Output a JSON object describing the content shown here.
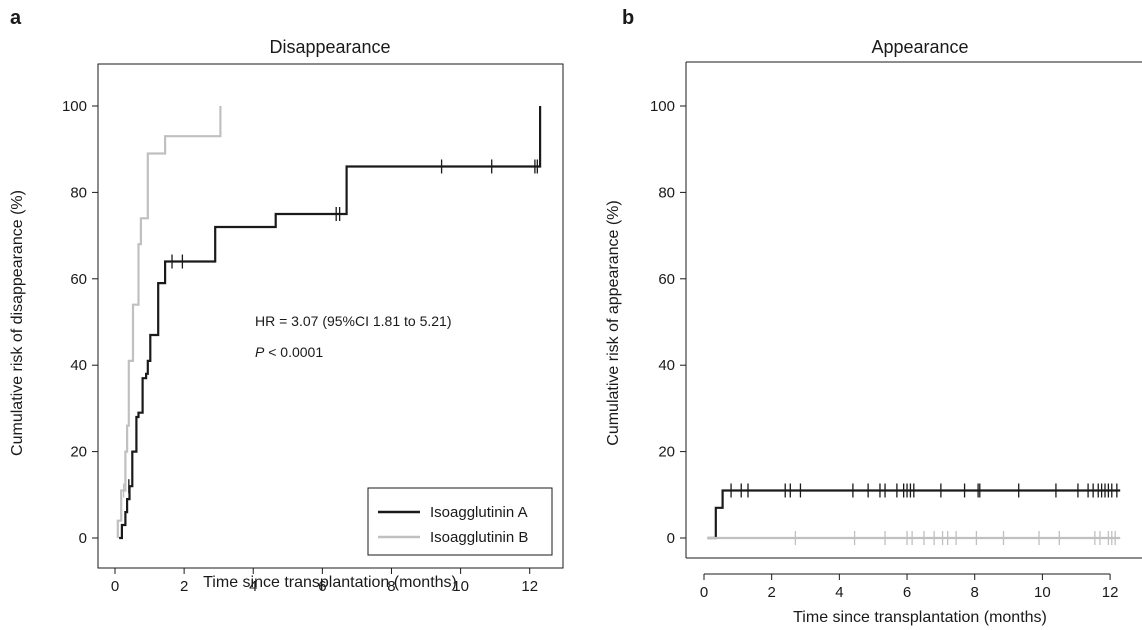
{
  "colors": {
    "series_a": "#1a1a1a",
    "series_b": "#c0c0c0",
    "axis": "#1a1a1a",
    "legend_border": "#1a1a1a"
  },
  "chart_data": [
    {
      "panel_letter": "a",
      "type": "line",
      "title": "Disappearance",
      "xlabel": "Time since transplantation (months)",
      "ylabel": "Cumulative risk of disappearance (%)",
      "xlim": [
        0,
        12.5
      ],
      "ylim": [
        0,
        100
      ],
      "xticks": [
        0,
        2,
        4,
        6,
        8,
        10,
        12
      ],
      "yticks": [
        0,
        20,
        40,
        60,
        80,
        100
      ],
      "grid": false,
      "legend": {
        "placement": "bottom-right",
        "entries": [
          "Isoagglutinin A",
          "Isoagglutinin B"
        ]
      },
      "annotations": {
        "hr": "HR = 3.07 (95%CI 1.81 to 5.21)",
        "p_italic": "P",
        "p_rest": " < 0.0001"
      },
      "series": [
        {
          "name": "Isoagglutinin A",
          "step": [
            [
              0.12,
              0
            ],
            [
              0.2,
              0
            ],
            [
              0.2,
              3
            ],
            [
              0.3,
              3
            ],
            [
              0.3,
              6
            ],
            [
              0.35,
              6
            ],
            [
              0.35,
              9
            ],
            [
              0.42,
              9
            ],
            [
              0.42,
              12
            ],
            [
              0.5,
              12
            ],
            [
              0.5,
              20
            ],
            [
              0.62,
              20
            ],
            [
              0.62,
              28
            ],
            [
              0.68,
              28
            ],
            [
              0.68,
              29
            ],
            [
              0.8,
              29
            ],
            [
              0.8,
              37
            ],
            [
              0.9,
              37
            ],
            [
              0.9,
              38
            ],
            [
              0.95,
              38
            ],
            [
              0.95,
              41
            ],
            [
              1.02,
              41
            ],
            [
              1.02,
              47
            ],
            [
              1.25,
              47
            ],
            [
              1.25,
              59
            ],
            [
              1.45,
              59
            ],
            [
              1.45,
              64
            ],
            [
              2.9,
              64
            ],
            [
              2.9,
              72
            ],
            [
              4.65,
              72
            ],
            [
              4.65,
              75
            ],
            [
              6.7,
              75
            ],
            [
              6.7,
              86
            ],
            [
              12.3,
              86
            ],
            [
              12.3,
              100
            ]
          ],
          "censored": [
            [
              0.4,
              12
            ],
            [
              1.65,
              64
            ],
            [
              1.95,
              64
            ],
            [
              6.4,
              75
            ],
            [
              6.5,
              75
            ],
            [
              9.45,
              86
            ],
            [
              10.9,
              86
            ],
            [
              12.15,
              86
            ],
            [
              12.22,
              86
            ]
          ]
        },
        {
          "name": "Isoagglutinin B",
          "step": [
            [
              0.08,
              0
            ],
            [
              0.08,
              4
            ],
            [
              0.18,
              4
            ],
            [
              0.18,
              11
            ],
            [
              0.3,
              11
            ],
            [
              0.3,
              20
            ],
            [
              0.35,
              20
            ],
            [
              0.35,
              26
            ],
            [
              0.4,
              26
            ],
            [
              0.4,
              41
            ],
            [
              0.52,
              41
            ],
            [
              0.52,
              54
            ],
            [
              0.68,
              54
            ],
            [
              0.68,
              68
            ],
            [
              0.75,
              68
            ],
            [
              0.75,
              74
            ],
            [
              0.95,
              74
            ],
            [
              0.95,
              89
            ],
            [
              1.45,
              89
            ],
            [
              1.45,
              93
            ],
            [
              3.05,
              93
            ],
            [
              3.05,
              100
            ]
          ],
          "censored": [
            [
              0.25,
              11
            ]
          ]
        }
      ]
    },
    {
      "panel_letter": "b",
      "type": "line",
      "title": "Appearance",
      "xlabel": "Time since transplantation (months)",
      "ylabel": "Cumulative risk of appearance (%)",
      "xlim": [
        0,
        12.5
      ],
      "ylim": [
        0,
        100
      ],
      "xticks": [
        0,
        2,
        4,
        6,
        8,
        10,
        12
      ],
      "yticks": [
        0,
        20,
        40,
        60,
        80,
        100
      ],
      "grid": false,
      "series": [
        {
          "name": "Isoagglutinin A",
          "step": [
            [
              0.1,
              0
            ],
            [
              0.35,
              0
            ],
            [
              0.35,
              7
            ],
            [
              0.55,
              7
            ],
            [
              0.55,
              11
            ],
            [
              12.3,
              11
            ]
          ],
          "censored": [
            [
              0.8,
              11
            ],
            [
              1.1,
              11
            ],
            [
              1.3,
              11
            ],
            [
              2.4,
              11
            ],
            [
              2.55,
              11
            ],
            [
              2.85,
              11
            ],
            [
              4.4,
              11
            ],
            [
              4.85,
              11
            ],
            [
              5.2,
              11
            ],
            [
              5.35,
              11
            ],
            [
              5.7,
              11
            ],
            [
              5.9,
              11
            ],
            [
              6.0,
              11
            ],
            [
              6.1,
              11
            ],
            [
              6.2,
              11
            ],
            [
              7.0,
              11
            ],
            [
              7.7,
              11
            ],
            [
              8.1,
              11
            ],
            [
              8.15,
              11
            ],
            [
              9.3,
              11
            ],
            [
              10.4,
              11
            ],
            [
              11.05,
              11
            ],
            [
              11.35,
              11
            ],
            [
              11.5,
              11
            ],
            [
              11.65,
              11
            ],
            [
              11.75,
              11
            ],
            [
              11.85,
              11
            ],
            [
              11.95,
              11
            ],
            [
              12.05,
              11
            ],
            [
              12.2,
              11
            ]
          ]
        },
        {
          "name": "Isoagglutinin B",
          "step": [
            [
              0.1,
              0
            ],
            [
              12.3,
              0
            ]
          ],
          "censored": [
            [
              2.7,
              0
            ],
            [
              4.45,
              0
            ],
            [
              5.35,
              0
            ],
            [
              6.0,
              0
            ],
            [
              6.15,
              0
            ],
            [
              6.5,
              0
            ],
            [
              6.8,
              0
            ],
            [
              7.05,
              0
            ],
            [
              7.2,
              0
            ],
            [
              7.45,
              0
            ],
            [
              8.05,
              0
            ],
            [
              8.85,
              0
            ],
            [
              9.9,
              0
            ],
            [
              10.5,
              0
            ],
            [
              11.55,
              0
            ],
            [
              11.7,
              0
            ],
            [
              11.95,
              0
            ],
            [
              12.05,
              0
            ],
            [
              12.15,
              0
            ]
          ]
        }
      ]
    }
  ]
}
